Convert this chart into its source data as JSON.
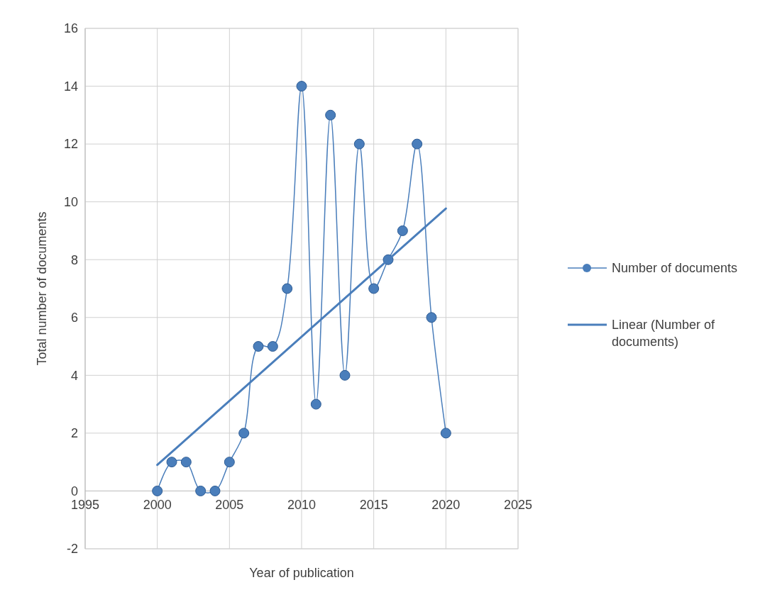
{
  "chart_data": {
    "type": "line",
    "xlabel": "Year of publication",
    "ylabel": "Total number of documents",
    "x": [
      2000,
      2001,
      2002,
      2003,
      2004,
      2005,
      2006,
      2007,
      2008,
      2009,
      2010,
      2011,
      2012,
      2013,
      2014,
      2015,
      2016,
      2017,
      2018,
      2019,
      2020
    ],
    "series": [
      {
        "name": "Number of documents",
        "color": "#4a7ebb",
        "marker": "circle",
        "values": [
          0,
          1,
          1,
          0,
          0,
          1,
          2,
          5,
          5,
          7,
          14,
          3,
          13,
          4,
          12,
          7,
          8,
          9,
          12,
          6,
          2
        ]
      },
      {
        "name": "Linear (Number of documents)",
        "color": "#4a7ebb",
        "type": "line",
        "marker": "none",
        "x": [
          2000,
          2020
        ],
        "values": [
          0.9,
          9.77
        ]
      }
    ],
    "xlim": [
      1995,
      2025
    ],
    "xticks": [
      1995,
      2000,
      2005,
      2010,
      2015,
      2020,
      2025
    ],
    "ylim": [
      -2,
      16
    ],
    "yticks": [
      -2,
      0,
      2,
      4,
      6,
      8,
      10,
      12,
      14,
      16
    ],
    "grid": true,
    "legend": "right"
  }
}
